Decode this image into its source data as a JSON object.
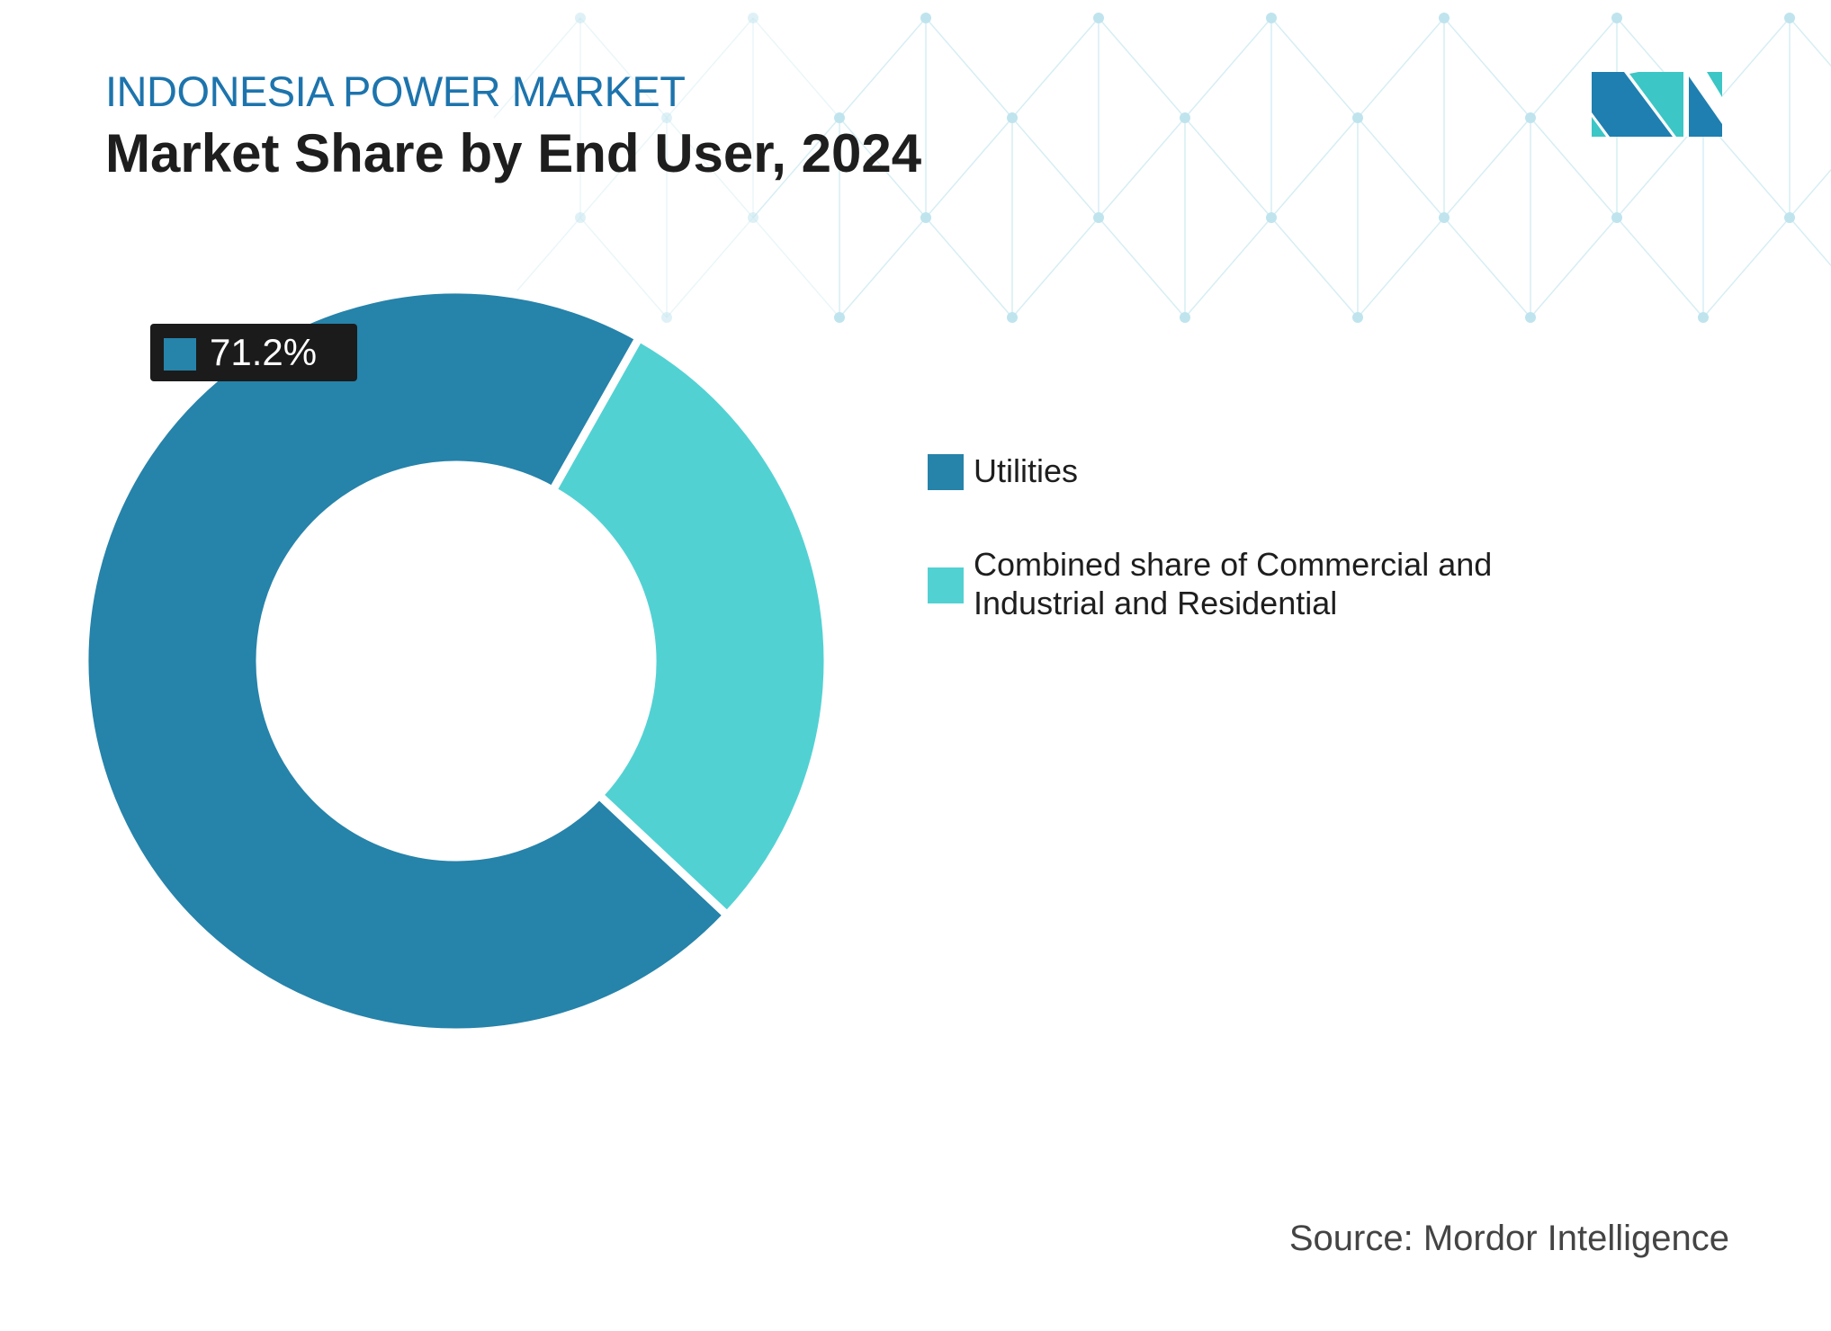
{
  "header": {
    "supertitle": "INDONESIA POWER MARKET",
    "title": "Market Share by End User, 2024"
  },
  "logo": {
    "name": "mordor-intelligence-logo",
    "colors": [
      "#1f7fb0",
      "#3cc6c6"
    ]
  },
  "chart_data": {
    "type": "donut",
    "title": "Market Share by End User, 2024",
    "series": [
      {
        "name": "Utilities",
        "value": 71.2,
        "color": "#2683aa"
      },
      {
        "name": "Combined share of Commercial and Industrial and Residential",
        "value": 28.8,
        "color": "#52d1d3"
      }
    ],
    "data_labels": [
      {
        "series": "Utilities",
        "text": "71.2%"
      }
    ],
    "legend_position": "right",
    "unit": "%"
  },
  "footer": {
    "source": "Source: Mordor Intelligence"
  }
}
